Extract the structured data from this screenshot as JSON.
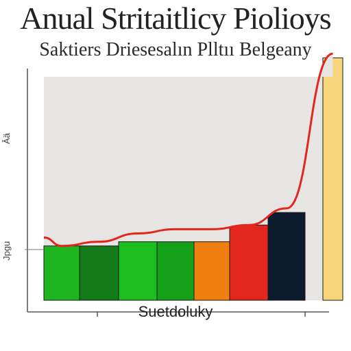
{
  "title": "Anual Stritaitlicy Piolioys",
  "subtitle": "Saktiers Driesesalın Plltıı Belgeany",
  "chart_data": {
    "type": "bar",
    "categories": [
      "",
      "",
      "",
      "",
      "",
      "",
      "",
      ""
    ],
    "values": [
      13,
      13,
      14,
      14,
      14,
      18,
      21,
      58
    ],
    "colors": [
      "#1fb521",
      "#127a16",
      "#1cbd1f",
      "#14a018",
      "#f07f12",
      "#e2261d",
      "#0b1a2c",
      "#f8d47a"
    ],
    "overlay_curve": [
      13,
      14,
      16,
      17,
      17,
      18,
      22,
      59
    ],
    "plot_background": "#e6e5e4",
    "curve_color": "#e2261d",
    "xlabel": "Suetdoluky",
    "ylabel": "",
    "ytick_labels": [
      "Āä",
      "Jpgu"
    ],
    "ylim": [
      0,
      62
    ],
    "grid": false,
    "legend": "none"
  }
}
